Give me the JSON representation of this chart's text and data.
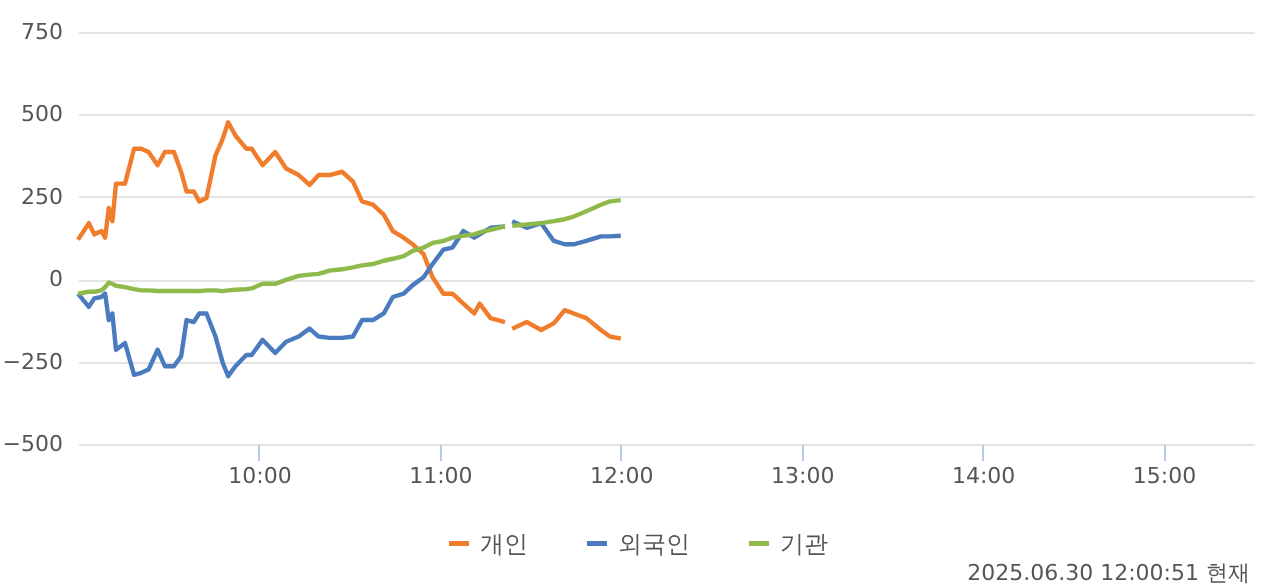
{
  "chart_data": {
    "type": "line",
    "x": [
      9.0,
      9.06,
      9.09,
      9.13,
      9.15,
      9.17,
      9.19,
      9.21,
      9.26,
      9.31,
      9.35,
      9.39,
      9.44,
      9.48,
      9.53,
      9.57,
      9.6,
      9.64,
      9.67,
      9.71,
      9.76,
      9.8,
      9.83,
      9.87,
      9.93,
      9.96,
      10.02,
      10.09,
      10.15,
      10.22,
      10.28,
      10.33,
      10.39,
      10.46,
      10.52,
      10.57,
      10.63,
      10.69,
      10.74,
      10.8,
      10.85,
      10.91,
      10.96,
      11.02,
      11.07,
      11.13,
      11.19,
      11.22,
      11.28,
      11.36,
      11.38,
      11.4,
      11.48,
      11.56,
      11.63,
      11.69,
      11.74,
      11.81,
      11.89,
      11.94,
      12.0
    ],
    "series": [
      {
        "name": "개인",
        "color": "#f07d2c",
        "values": [
          120,
          170,
          136,
          146,
          126,
          216,
          176,
          290,
          290,
          396,
          396,
          386,
          346,
          386,
          386,
          326,
          266,
          266,
          236,
          246,
          376,
          426,
          476,
          436,
          396,
          396,
          346,
          386,
          336,
          316,
          286,
          316,
          316,
          326,
          296,
          236,
          226,
          196,
          146,
          126,
          106,
          76,
          6,
          -44,
          -44,
          -74,
          -104,
          -74,
          -118,
          -130,
          null,
          -150,
          -130,
          -154,
          -134,
          -94,
          -104,
          -118,
          -154,
          -174,
          -180
        ]
      },
      {
        "name": "외국인",
        "color": "#4a7bbf",
        "values": [
          -44,
          -84,
          -58,
          -54,
          -44,
          -124,
          -104,
          -214,
          -194,
          -290,
          -284,
          -274,
          -214,
          -264,
          -264,
          -234,
          -124,
          -130,
          -104,
          -104,
          -174,
          -254,
          -294,
          -264,
          -230,
          -230,
          -184,
          -224,
          -190,
          -174,
          -150,
          -174,
          -178,
          -178,
          -174,
          -124,
          -124,
          -104,
          -54,
          -44,
          -18,
          6,
          46,
          90,
          96,
          146,
          126,
          136,
          156,
          160,
          null,
          176,
          156,
          170,
          116,
          106,
          106,
          116,
          130,
          130,
          132
        ]
      },
      {
        "name": "기관",
        "color": "#8fb94b",
        "values": [
          -44,
          -38,
          -38,
          -34,
          -24,
          -10,
          -14,
          -20,
          -24,
          -30,
          -34,
          -34,
          -36,
          -36,
          -36,
          -36,
          -36,
          -36,
          -36,
          -34,
          -34,
          -36,
          -34,
          -32,
          -30,
          -28,
          -14,
          -14,
          -2,
          10,
          14,
          16,
          26,
          30,
          36,
          42,
          46,
          56,
          62,
          70,
          86,
          96,
          110,
          116,
          126,
          132,
          136,
          142,
          150,
          160,
          null,
          162,
          166,
          170,
          176,
          182,
          190,
          206,
          226,
          236,
          240
        ]
      }
    ],
    "xlim": [
      9.0,
      15.5
    ],
    "xticks": [
      {
        "value": 10,
        "label": "10:00"
      },
      {
        "value": 11,
        "label": "11:00"
      },
      {
        "value": 12,
        "label": "12:00"
      },
      {
        "value": 13,
        "label": "13:00"
      },
      {
        "value": 14,
        "label": "14:00"
      },
      {
        "value": 15,
        "label": "15:00"
      }
    ],
    "ylim": [
      -500,
      750
    ],
    "yticks": [
      -500,
      -250,
      0,
      250,
      500,
      750
    ],
    "grid": "y",
    "legend": "bottom",
    "annotations": [
      "2025.06.30 12:00:51 현재"
    ]
  }
}
